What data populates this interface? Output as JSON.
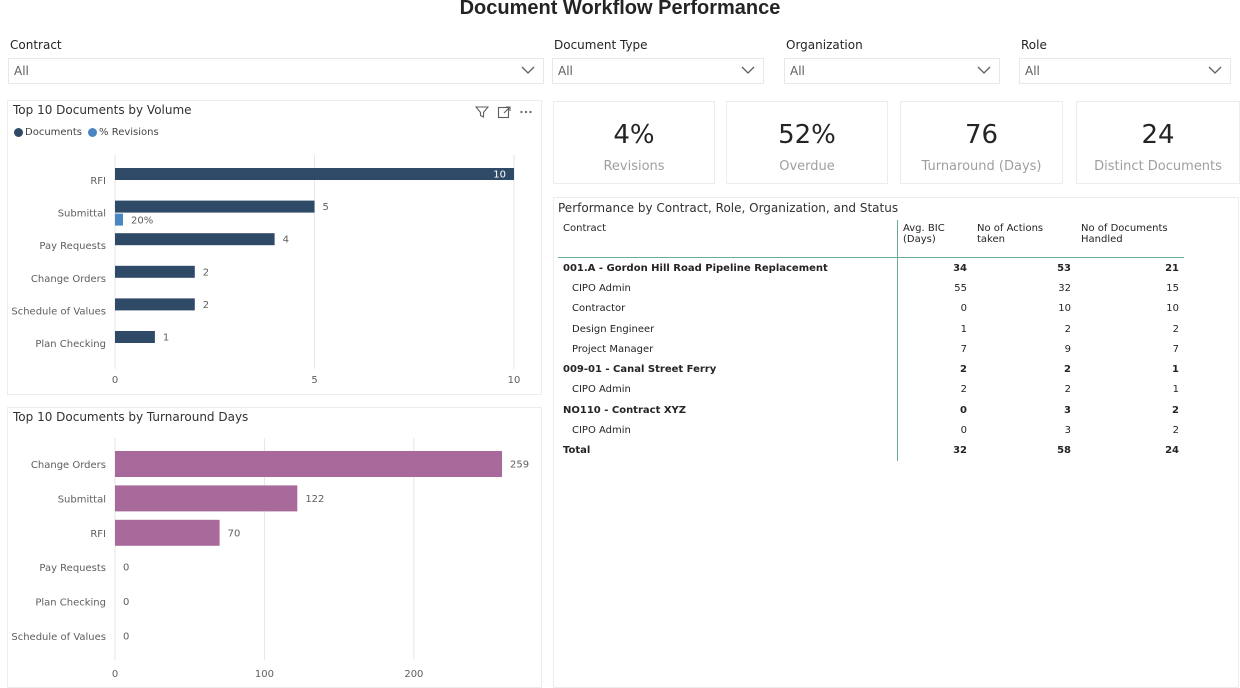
{
  "page": {
    "title": "Document Workflow Performance"
  },
  "filters": [
    {
      "label": "Contract",
      "value": "All"
    },
    {
      "label": "Document Type",
      "value": "All"
    },
    {
      "label": "Organization",
      "value": "All"
    },
    {
      "label": "Role",
      "value": "All"
    }
  ],
  "cards": [
    {
      "value": "4%",
      "label": "Revisions"
    },
    {
      "value": "52%",
      "label": "Overdue"
    },
    {
      "value": "76",
      "label": "Turnaround (Days)"
    },
    {
      "value": "24",
      "label": "Distinct Documents"
    }
  ],
  "colors": {
    "documents": "#2e4a67",
    "revisions": "#4a86c4",
    "turnaround": "#a86a9a",
    "gridline": "#e6e6e6",
    "divider": "#6aa89a"
  },
  "icons": [
    "filter-icon",
    "focus-mode-icon",
    "more-options-icon",
    "chevron-down-icon"
  ],
  "chart_data": [
    {
      "type": "bar",
      "orientation": "horizontal",
      "title": "Top 10 Documents by Volume",
      "legend_placement": "top-left",
      "categories": [
        "RFI",
        "Submittal",
        "Pay Requests",
        "Change Orders",
        "Schedule of Values",
        "Plan Checking"
      ],
      "series": [
        {
          "name": "Documents",
          "values": [
            10,
            5,
            4,
            2,
            2,
            1
          ],
          "labels": [
            "10",
            "5",
            "4",
            "2",
            "2",
            "1"
          ]
        },
        {
          "name": "% Revisions",
          "values": [
            null,
            0.2,
            null,
            null,
            null,
            null
          ],
          "labels": [
            "",
            "20%",
            "",
            "",
            "",
            ""
          ]
        }
      ],
      "xlim": [
        0,
        10
      ],
      "xticks": [
        "0",
        "5",
        "10"
      ],
      "grid": true
    },
    {
      "type": "bar",
      "orientation": "horizontal",
      "title": "Top 10 Documents by Turnaround Days",
      "categories": [
        "Change Orders",
        "Submittal",
        "RFI",
        "Pay Requests",
        "Plan Checking",
        "Schedule of Values"
      ],
      "series": [
        {
          "values": [
            259,
            122,
            70,
            0,
            0,
            0
          ],
          "labels": [
            "259",
            "122",
            "70",
            "0",
            "0",
            "0"
          ]
        }
      ],
      "xlim": [
        0,
        267
      ],
      "xticks": [
        "0",
        "100",
        "200"
      ],
      "grid": true
    }
  ],
  "table": {
    "title": "Performance by Contract, Role, Organization, and Status",
    "columns": [
      "Contract",
      "Avg. BIC (Days)",
      "No of Actions taken",
      "No of Documents Handled"
    ],
    "rows": [
      {
        "level": 0,
        "cells": [
          "001.A - Gordon Hill Road Pipeline Replacement",
          "34",
          "53",
          "21"
        ]
      },
      {
        "level": 1,
        "cells": [
          "CIPO Admin",
          "55",
          "32",
          "15"
        ]
      },
      {
        "level": 1,
        "cells": [
          "Contractor",
          "0",
          "10",
          "10"
        ]
      },
      {
        "level": 1,
        "cells": [
          "Design Engineer",
          "1",
          "2",
          "2"
        ]
      },
      {
        "level": 1,
        "cells": [
          "Project Manager",
          "7",
          "9",
          "7"
        ]
      },
      {
        "level": 0,
        "cells": [
          "009-01 - Canal Street Ferry",
          "2",
          "2",
          "1"
        ]
      },
      {
        "level": 1,
        "cells": [
          "CIPO Admin",
          "2",
          "2",
          "1"
        ]
      },
      {
        "level": 0,
        "cells": [
          "NO110 - Contract XYZ",
          "0",
          "3",
          "2"
        ]
      },
      {
        "level": 1,
        "cells": [
          "CIPO Admin",
          "0",
          "3",
          "2"
        ]
      },
      {
        "level": 0,
        "cells": [
          "Total",
          "32",
          "58",
          "24"
        ]
      }
    ]
  }
}
